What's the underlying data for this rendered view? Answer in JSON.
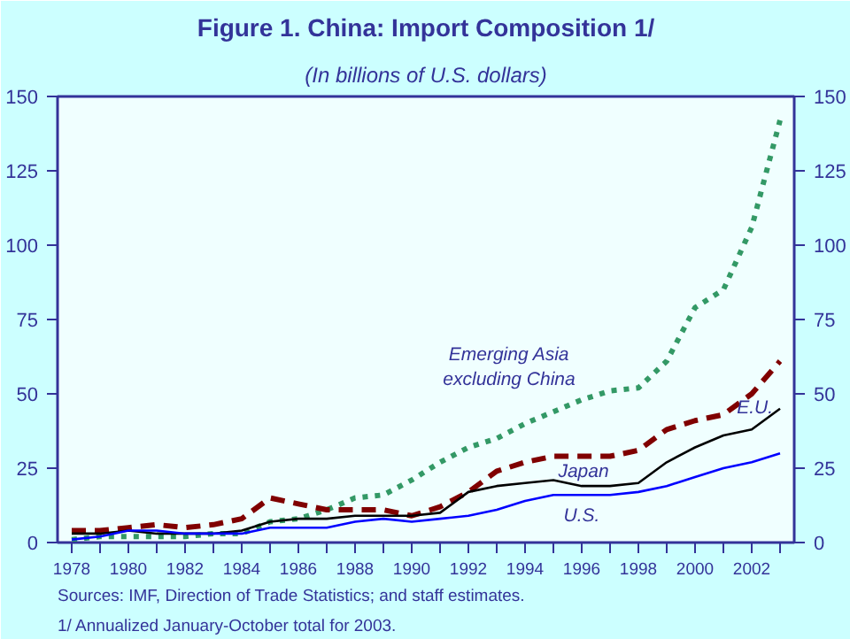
{
  "chart_data": {
    "type": "line",
    "title": "Figure 1. China: Import Composition 1/",
    "subtitle": "(In billions of U.S. dollars)",
    "x": [
      1978,
      1979,
      1980,
      1981,
      1982,
      1983,
      1984,
      1985,
      1986,
      1987,
      1988,
      1989,
      1990,
      1991,
      1992,
      1993,
      1994,
      1995,
      1996,
      1997,
      1998,
      1999,
      2000,
      2001,
      2002,
      2003
    ],
    "series": [
      {
        "name": "Emerging Asia\nexcluding China",
        "color": "#339966",
        "line_style": "dotted",
        "values": [
          1,
          2,
          2,
          2,
          2,
          3,
          3,
          7,
          8,
          11,
          15,
          16,
          21,
          27,
          32,
          35,
          40,
          44,
          48,
          51,
          52,
          61,
          79,
          85,
          106,
          142
        ]
      },
      {
        "name": "E.U.",
        "color": "#800000",
        "line_style": "dashed",
        "values": [
          4,
          4,
          5,
          6,
          5,
          6,
          8,
          15,
          13,
          11,
          11,
          11,
          9,
          12,
          17,
          24,
          27,
          29,
          29,
          29,
          31,
          38,
          41,
          43,
          50,
          61
        ]
      },
      {
        "name": "Japan",
        "color": "#000000",
        "line_style": "solid",
        "values": [
          3,
          3,
          4,
          3,
          3,
          3,
          4,
          7,
          8,
          8,
          9,
          9,
          9,
          10,
          17,
          19,
          20,
          21,
          19,
          19,
          20,
          27,
          32,
          36,
          38,
          45
        ]
      },
      {
        "name": "U.S.",
        "color": "#0000ff",
        "line_style": "solid",
        "values": [
          1,
          2,
          4,
          4,
          3,
          3,
          3,
          5,
          5,
          5,
          7,
          8,
          7,
          8,
          9,
          11,
          14,
          16,
          16,
          16,
          17,
          19,
          22,
          25,
          27,
          30
        ]
      }
    ],
    "xlim": [
      1977.5,
      2003.5
    ],
    "xticks": [
      1978,
      {
        "value": 1979,
        "label": null
      },
      1980,
      {
        "value": 1981,
        "label": null
      },
      1982,
      {
        "value": 1983,
        "label": null
      },
      1984,
      {
        "value": 1985,
        "label": null
      },
      1986,
      {
        "value": 1987,
        "label": null
      },
      1988,
      {
        "value": 1989,
        "label": null
      },
      1990,
      {
        "value": 1991,
        "label": null
      },
      1992,
      {
        "value": 1993,
        "label": null
      },
      1994,
      {
        "value": 1995,
        "label": null
      },
      1996,
      {
        "value": 1997,
        "label": null
      },
      1998,
      {
        "value": 1999,
        "label": null
      },
      2000,
      {
        "value": 2001,
        "label": null
      },
      2002,
      {
        "value": 2003,
        "label": null
      }
    ],
    "ylim": [
      0,
      150
    ],
    "yticks": [
      0,
      25,
      50,
      75,
      100,
      125,
      150
    ],
    "y2lim": [
      0,
      150
    ],
    "y2ticks": [
      0,
      25,
      50,
      75,
      100,
      125,
      150
    ],
    "grid": false,
    "marker": "none",
    "annotations": [
      "Sources: IMF, Direction of Trade Statistics; and staff estimates.",
      "1/ Annualized January-October total for 2003."
    ]
  }
}
